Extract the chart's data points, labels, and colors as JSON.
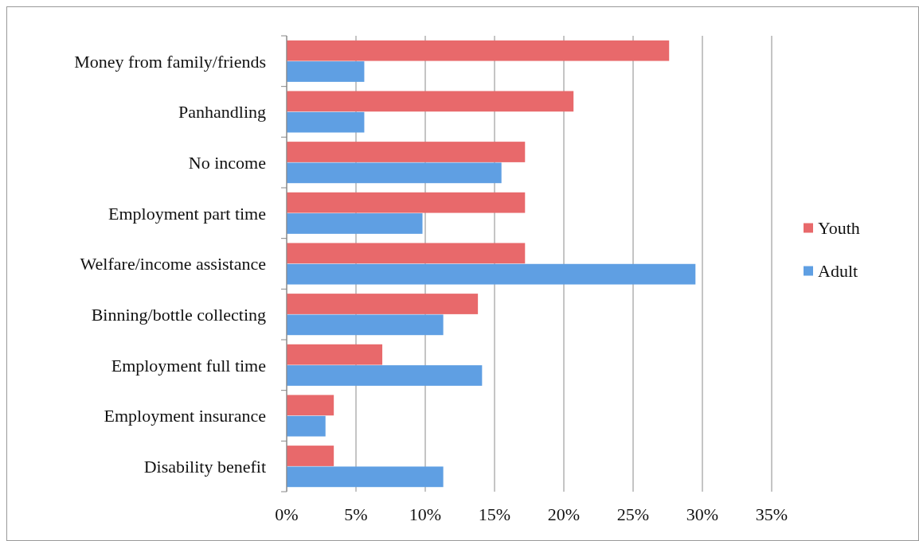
{
  "chart_data": {
    "type": "bar",
    "orientation": "horizontal",
    "categories": [
      "Money from family/friends",
      "Panhandling",
      "No income",
      "Employment part time",
      "Welfare/income assistance",
      "Binning/bottle collecting",
      "Employment full time",
      "Employment insurance",
      "Disability benefit"
    ],
    "series": [
      {
        "name": "Youth",
        "color": "#e8696b",
        "values": [
          27.6,
          20.7,
          17.2,
          17.2,
          17.2,
          13.8,
          6.9,
          3.4,
          3.4
        ]
      },
      {
        "name": "Adult",
        "color": "#5f9fe3",
        "values": [
          5.6,
          5.6,
          15.5,
          9.8,
          29.5,
          11.3,
          14.1,
          2.8,
          11.3
        ]
      }
    ],
    "xlim": [
      0,
      35
    ],
    "xticks": [
      {
        "value": 0,
        "label": "0%"
      },
      {
        "value": 5,
        "label": "5%"
      },
      {
        "value": 10,
        "label": "10%"
      },
      {
        "value": 15,
        "label": "15%"
      },
      {
        "value": 20,
        "label": "20%"
      },
      {
        "value": 25,
        "label": "25%"
      },
      {
        "value": 30,
        "label": "30%"
      },
      {
        "value": 35,
        "label": "35%"
      }
    ],
    "grid": "x",
    "legend": "right"
  }
}
